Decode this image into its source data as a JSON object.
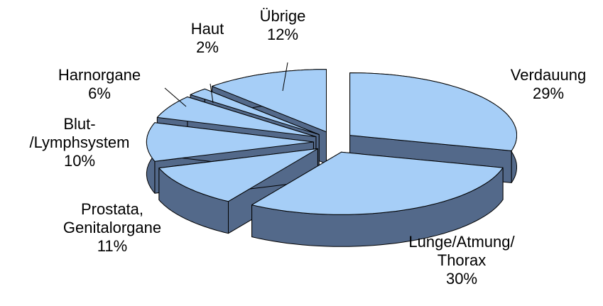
{
  "chart_data": {
    "type": "pie3d",
    "categories": [
      "Verdauung",
      "Lunge/Atmung/\nThorax",
      "Prostata,\nGenitalorgane",
      "Blut-\n/Lymphsystem",
      "Harnorgane",
      "Haut",
      "Übrige"
    ],
    "values": [
      29,
      30,
      11,
      10,
      6,
      2,
      12
    ],
    "value_labels": [
      "29%",
      "30%",
      "11%",
      "10%",
      "6%",
      "2%",
      "12%"
    ],
    "color": "#a6cef7",
    "side_color": "#53698a"
  }
}
